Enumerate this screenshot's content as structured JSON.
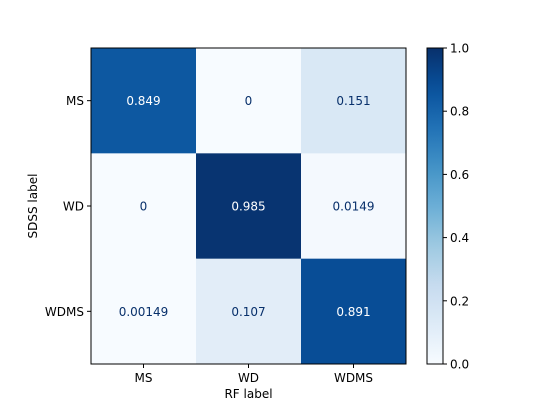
{
  "chart_data": {
    "type": "heatmap",
    "title": "",
    "xlabel": "RF label",
    "ylabel": "SDSS label",
    "x_categories": [
      "MS",
      "WD",
      "WDMS"
    ],
    "y_categories": [
      "MS",
      "WD",
      "WDMS"
    ],
    "values": [
      [
        0.849,
        0,
        0.151
      ],
      [
        0,
        0.985,
        0.0149
      ],
      [
        0.00149,
        0.107,
        0.891
      ]
    ],
    "cell_labels": [
      [
        "0.849",
        "0",
        "0.151"
      ],
      [
        "0",
        "0.985",
        "0.0149"
      ],
      [
        "0.00149",
        "0.107",
        "0.891"
      ]
    ],
    "colormap": "Blues",
    "colorbar": {
      "range": [
        0.0,
        1.0
      ],
      "ticks": [
        0.0,
        0.2,
        0.4,
        0.6,
        0.8,
        1.0
      ],
      "tick_labels": [
        "0.0",
        "0.2",
        "0.4",
        "0.6",
        "0.8",
        "1.0"
      ]
    },
    "colors": {
      "low": "#f7fbff",
      "high": "#08306b",
      "dark_text": "#08306b",
      "light_text": "#ffffff",
      "axis": "#000000"
    }
  }
}
